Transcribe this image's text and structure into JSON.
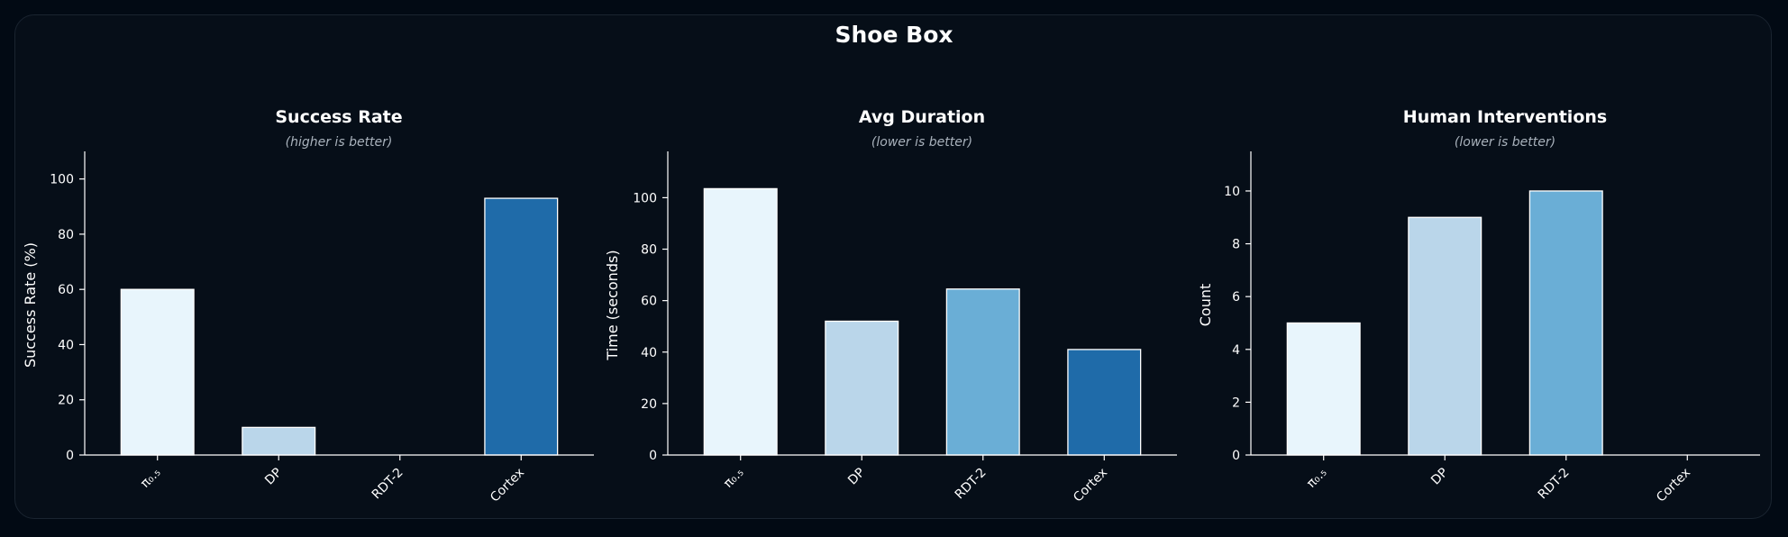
{
  "title": "Shoe Box",
  "chart_data": [
    {
      "type": "bar",
      "title": "Success Rate",
      "subtitle": "(higher is better)",
      "ylabel": "Success Rate (%)",
      "categories": [
        "π₀.₅",
        "DP",
        "RDT-2",
        "Cortex"
      ],
      "values": [
        60,
        10,
        0,
        93
      ],
      "colors": [
        "#e8f5fc",
        "#bad6ea",
        "#6aaed6",
        "#1f6ba9"
      ],
      "ylim": [
        0,
        110
      ],
      "yticks": [
        0,
        20,
        40,
        60,
        80,
        100
      ],
      "grid": false
    },
    {
      "type": "bar",
      "title": "Avg Duration",
      "subtitle": "(lower is better)",
      "ylabel": "Time (seconds)",
      "categories": [
        "π₀.₅",
        "DP",
        "RDT-2",
        "Cortex"
      ],
      "values": [
        103.5,
        52,
        64.5,
        41
      ],
      "colors": [
        "#e8f5fc",
        "#bad6ea",
        "#6aaed6",
        "#1f6ba9"
      ],
      "ylim": [
        0,
        118
      ],
      "yticks": [
        0,
        20,
        40,
        60,
        80,
        100
      ],
      "grid": false
    },
    {
      "type": "bar",
      "title": "Human Interventions",
      "subtitle": "(lower is better)",
      "ylabel": "Count",
      "categories": [
        "π₀.₅",
        "DP",
        "RDT-2",
        "Cortex"
      ],
      "values": [
        5,
        9,
        10,
        0
      ],
      "colors": [
        "#e8f5fc",
        "#bad6ea",
        "#6aaed6",
        "#1f6ba9"
      ],
      "ylim": [
        0,
        11.5
      ],
      "yticks": [
        0,
        2,
        4,
        6,
        8,
        10
      ],
      "grid": false
    }
  ]
}
